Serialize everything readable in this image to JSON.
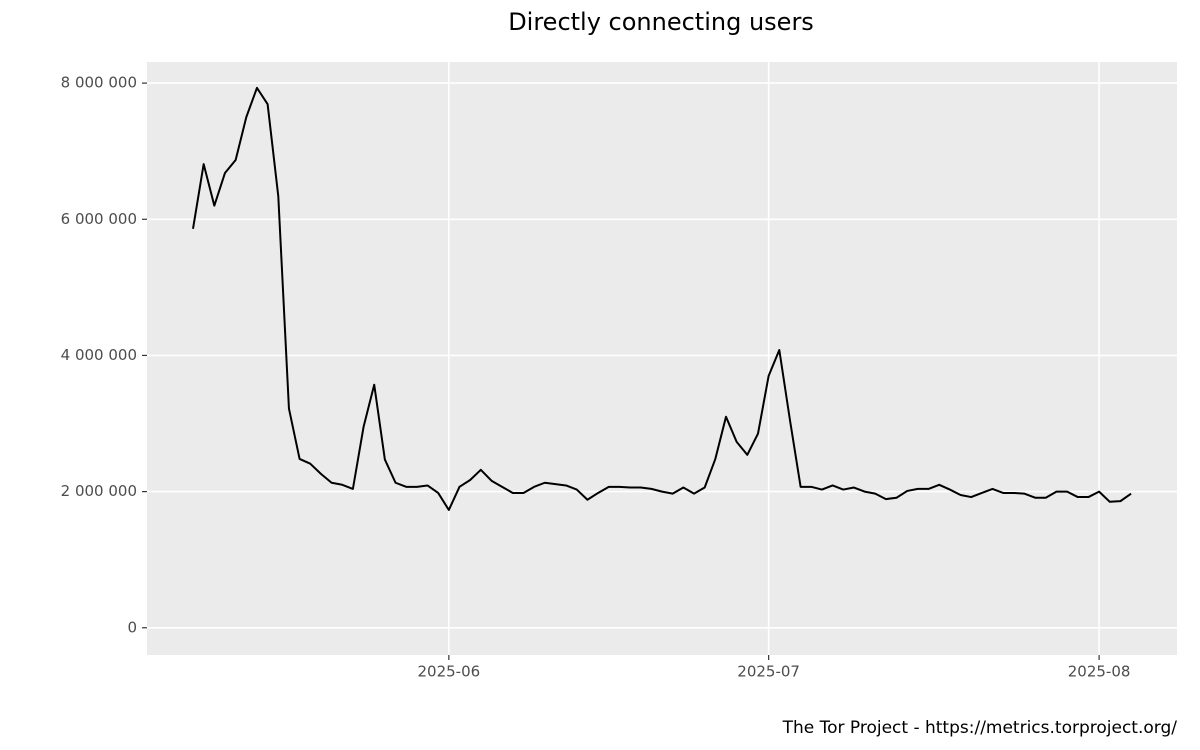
{
  "chart_data": {
    "type": "line",
    "title": "Directly connecting users",
    "caption": "The Tor Project - https://metrics.torproject.org/",
    "categories": [
      null,
      null,
      null,
      null,
      null,
      null,
      null,
      null,
      null,
      null,
      null,
      null,
      null,
      null,
      null,
      null,
      null,
      null,
      null,
      null,
      null,
      null,
      null,
      null,
      "2025-06",
      null,
      null,
      null,
      null,
      null,
      null,
      null,
      null,
      null,
      null,
      null,
      null,
      null,
      null,
      null,
      null,
      null,
      null,
      null,
      null,
      null,
      null,
      null,
      null,
      null,
      null,
      null,
      null,
      null,
      "2025-07",
      null,
      null,
      null,
      null,
      null,
      null,
      null,
      null,
      null,
      null,
      null,
      null,
      null,
      null,
      null,
      null,
      null,
      null,
      null,
      null,
      null,
      null,
      null,
      null,
      null,
      null,
      null,
      null,
      null,
      null,
      "2025-08",
      null,
      null,
      null
    ],
    "values": [
      5860000,
      6810000,
      6200000,
      6680000,
      6870000,
      7500000,
      7930000,
      7690000,
      6340000,
      3220000,
      2480000,
      2410000,
      2260000,
      2130000,
      2100000,
      2040000,
      2950000,
      3570000,
      2470000,
      2130000,
      2070000,
      2070000,
      2090000,
      1980000,
      1730000,
      2070000,
      2170000,
      2320000,
      2160000,
      2070000,
      1980000,
      1980000,
      2070000,
      2130000,
      2110000,
      2090000,
      2030000,
      1880000,
      1980000,
      2070000,
      2070000,
      2060000,
      2060000,
      2040000,
      2000000,
      1970000,
      2060000,
      1970000,
      2060000,
      2480000,
      3100000,
      2730000,
      2540000,
      2850000,
      3700000,
      4080000,
      3050000,
      2070000,
      2070000,
      2030000,
      2090000,
      2030000,
      2060000,
      2000000,
      1970000,
      1890000,
      1910000,
      2010000,
      2040000,
      2040000,
      2100000,
      2030000,
      1950000,
      1920000,
      1980000,
      2040000,
      1980000,
      1980000,
      1970000,
      1910000,
      1910000,
      2000000,
      2000000,
      1920000,
      1920000,
      2000000,
      1850000,
      1860000,
      1970000
    ],
    "color": "#000000",
    "ylim": [
      -400000,
      8310000
    ],
    "yticks": [
      0,
      {
        "value": 2000000,
        "label": "2 000 000"
      },
      {
        "value": 4000000,
        "label": "4 000 000"
      },
      {
        "value": 6000000,
        "label": "6 000 000"
      },
      {
        "value": 8000000,
        "label": "8 000 000"
      }
    ],
    "grid": true
  }
}
